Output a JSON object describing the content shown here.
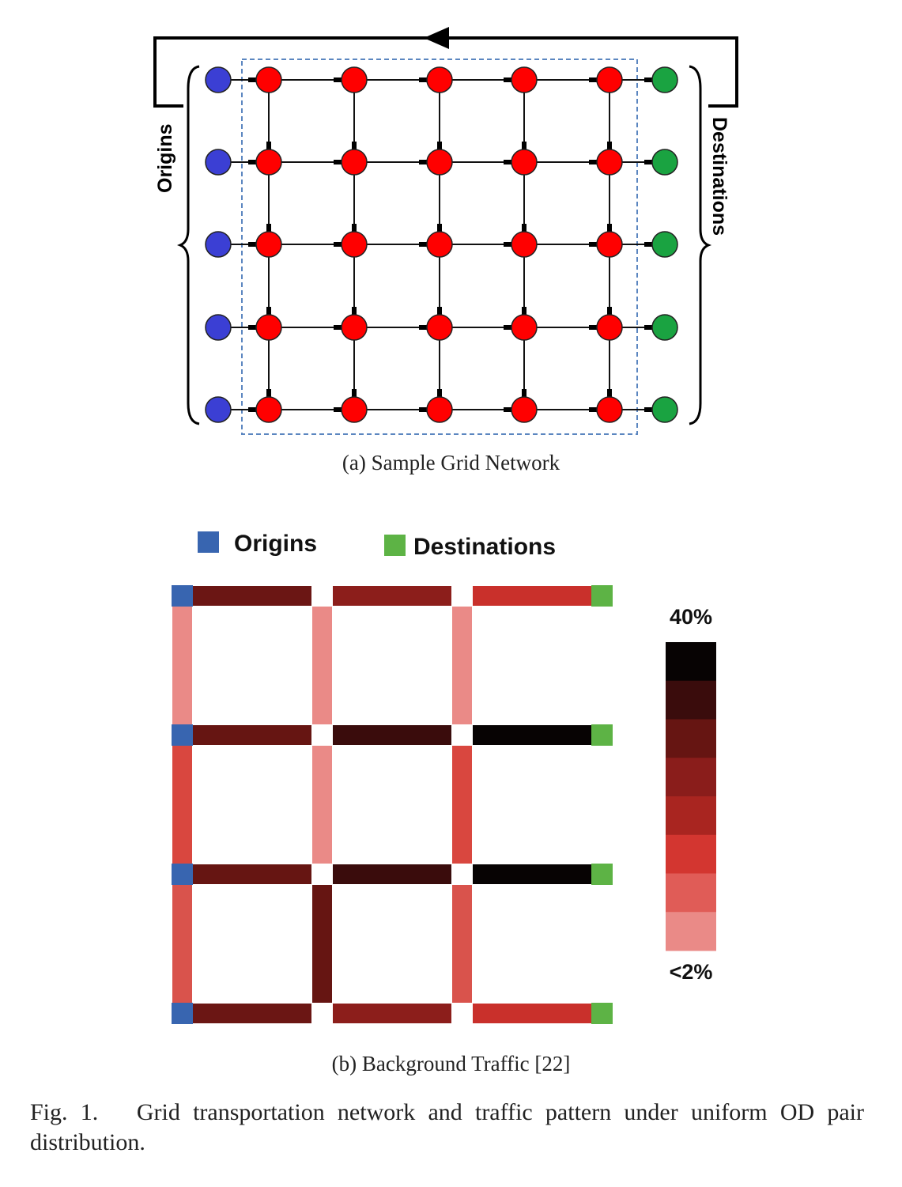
{
  "figure_a": {
    "label_origins": "Origins",
    "label_destinations": "Destinations",
    "caption": "(a) Sample Grid Network",
    "colors": {
      "origin": "#3b3fd4",
      "intersection": "#ff0000",
      "destination": "#1aa341",
      "frame": "#5b86c0"
    },
    "rows": 5,
    "cols": 5
  },
  "figure_b": {
    "legend_origins": "Origins",
    "legend_destinations": "Destinations",
    "scale_top": "40%",
    "scale_bottom": "<2%",
    "caption": "(b) Background Traffic [22]",
    "colors": {
      "origin": "#3865b0",
      "destination": "#5db345"
    },
    "scale_colors": [
      "#070303",
      "#3a0c0c",
      "#661512",
      "#8a1d1b",
      "#a92520",
      "#d33630",
      "#e05c57",
      "#ea8a87"
    ],
    "horizontal_links": [
      [
        "#6b1614",
        "#8c1e1b",
        "#c9302b"
      ],
      [
        "#661512",
        "#3a0c0c",
        "#070303"
      ],
      [
        "#661512",
        "#3a0c0c",
        "#070303"
      ],
      [
        "#6b1614",
        "#8c1e1b",
        "#c9302b"
      ]
    ],
    "vertical_links": [
      [
        "#ea8a87",
        "#d9473f",
        "#d9534c",
        "#661512"
      ],
      [
        "#ea8a87",
        "#ea8a87",
        "#661512",
        "#661512"
      ],
      [
        "#ea8a87",
        "#d9473f",
        "#d9534c",
        "#661512"
      ]
    ]
  },
  "caption": {
    "label": "Fig. 1.",
    "text": "Grid transportation network and traffic pattern under uniform OD pair distribution."
  }
}
